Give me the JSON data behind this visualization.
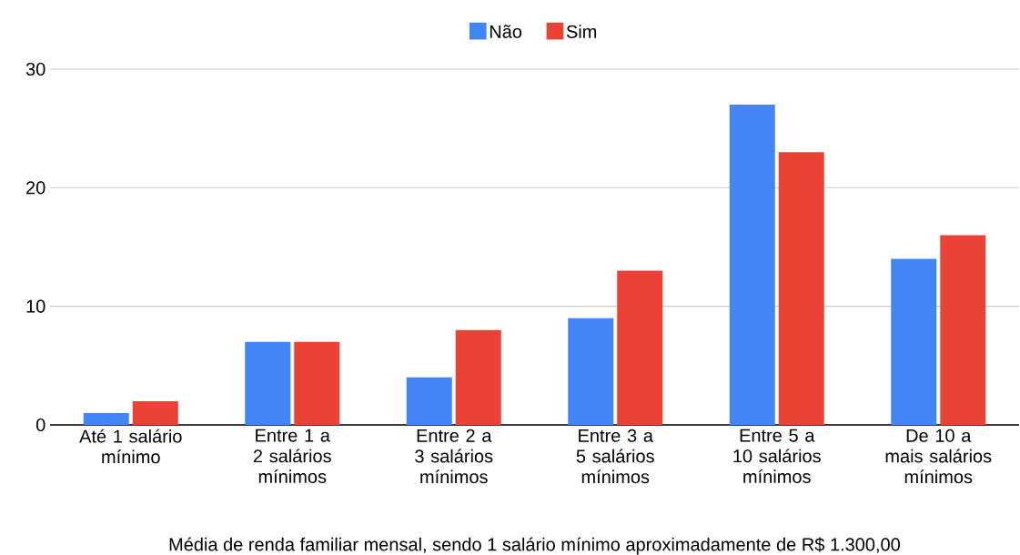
{
  "chart_data": {
    "type": "bar",
    "xlabel": "Média de renda familiar mensal, sendo 1 salário mínimo aproximadamente de R$ 1.300,00",
    "categories": [
      "Até 1 salário mínimo",
      "Entre 1 a 2 salários mínimos",
      "Entre 2 a 3 salários mínimos",
      "Entre 3 a 5 salários mínimos",
      "Entre 5 a 10 salários mínimos",
      "De 10 a mais salários mínimos"
    ],
    "series": [
      {
        "name": "Não",
        "color": "#4285f4",
        "values": [
          1,
          7,
          4,
          9,
          27,
          14
        ]
      },
      {
        "name": "Sim",
        "color": "#ea4335",
        "values": [
          2,
          7,
          8,
          13,
          23,
          16
        ]
      }
    ],
    "ylim": [
      0,
      30
    ],
    "yticks": [
      0,
      10,
      20,
      30
    ],
    "grid": "y",
    "legend": "top"
  }
}
